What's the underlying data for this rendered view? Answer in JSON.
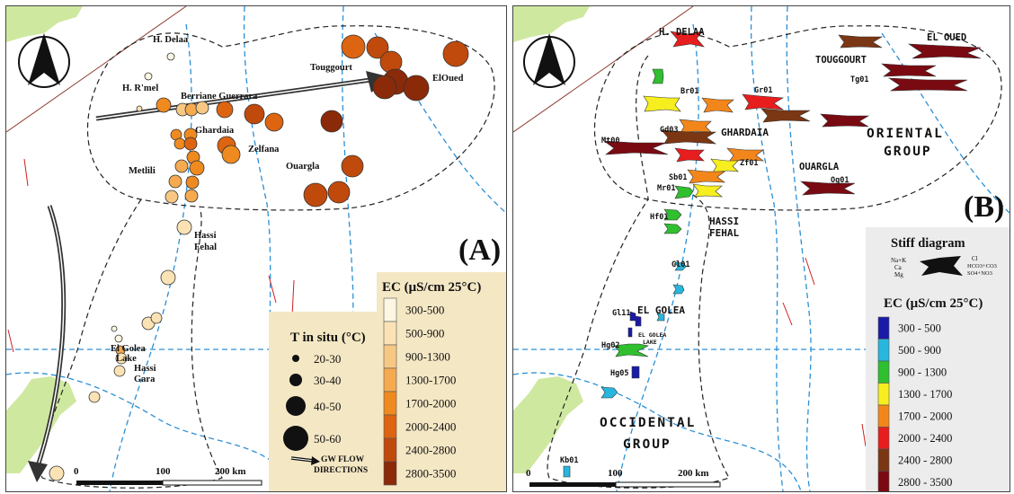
{
  "panel_a": {
    "letter": "(A)",
    "towns": [
      "H. Delaa",
      "H. R'mel",
      "Berriane Guerrara",
      "Ghardaia",
      "Zelfana",
      "Metlili",
      "Ouargla",
      "Touggourt",
      "ElOued",
      "Hassi",
      "Fehal",
      "El Golea",
      "Lake",
      "Hassi",
      "Gara"
    ],
    "temp_legend": {
      "title": "T in situ (°C)",
      "items": [
        "20-30",
        "30-40",
        "40-50",
        "50-60"
      ]
    },
    "ec_legend": {
      "title": "EC (μS/cm 25°C)",
      "items": [
        "300-500",
        "500-900",
        "900-1300",
        "1300-1700",
        "1700-2000",
        "2000-2400",
        "2400-2800",
        "2800-3500"
      ]
    },
    "scale": {
      "zero": "0",
      "mid": "100",
      "end": "200 km"
    },
    "flow_label_1": "GW FLOW",
    "flow_label_2": "DIRECTIONS"
  },
  "panel_b": {
    "letter": "(B)",
    "towns": [
      "H. DELAA",
      "TOUGGOURT",
      "EL OUED",
      "GHARDAIA",
      "OUARGLA",
      "HASSI",
      "FEHAL",
      "EL GOLEA",
      "EL GOLEA",
      "LAKE"
    ],
    "groups": {
      "oriental_1": "ORIENTAL",
      "oriental_2": "GROUP",
      "occidental_1": "OCCIDENTAL",
      "occidental_2": "GROUP"
    },
    "well_codes": [
      "Br01",
      "Gr01",
      "Tg01",
      "Gd03",
      "Mt00",
      "Zf01",
      "Sb01",
      "Og01",
      "Mr01",
      "Hf01",
      "Gl01",
      "Gl11",
      "Hg02",
      "Hg05",
      "Kb01"
    ],
    "stiff": {
      "title": "Stiff diagram",
      "left_1": "Na+K",
      "left_2": "Ca",
      "left_3": "Mg",
      "right_1": "Cl",
      "right_2": "HCO3+CO3",
      "right_3": "SO4+NO3"
    },
    "ec_legend": {
      "title": "EC (μS/cm 25°C)",
      "items": [
        "300 - 500",
        "500 - 900",
        "900 - 1300",
        "1300 - 1700",
        "1700 - 2000",
        "2000 - 2400",
        "2400 - 2800",
        "2800 - 3500"
      ]
    },
    "scale": {
      "zero": "0",
      "mid": "100",
      "end": "200 km"
    }
  },
  "colors": {
    "ec_a": [
      "#fcf6e2",
      "#fbe2b5",
      "#f7c884",
      "#f5aa50",
      "#ef8a20",
      "#dd6410",
      "#c04a0c",
      "#8a2a08"
    ],
    "ec_b": [
      "#1a1aa8",
      "#27b6de",
      "#2fbf2f",
      "#f6ee1e",
      "#f3861b",
      "#e81d1d",
      "#7b3613",
      "#7a0a12"
    ],
    "land": "#cfe8a0",
    "river": "#2a8fd6"
  }
}
